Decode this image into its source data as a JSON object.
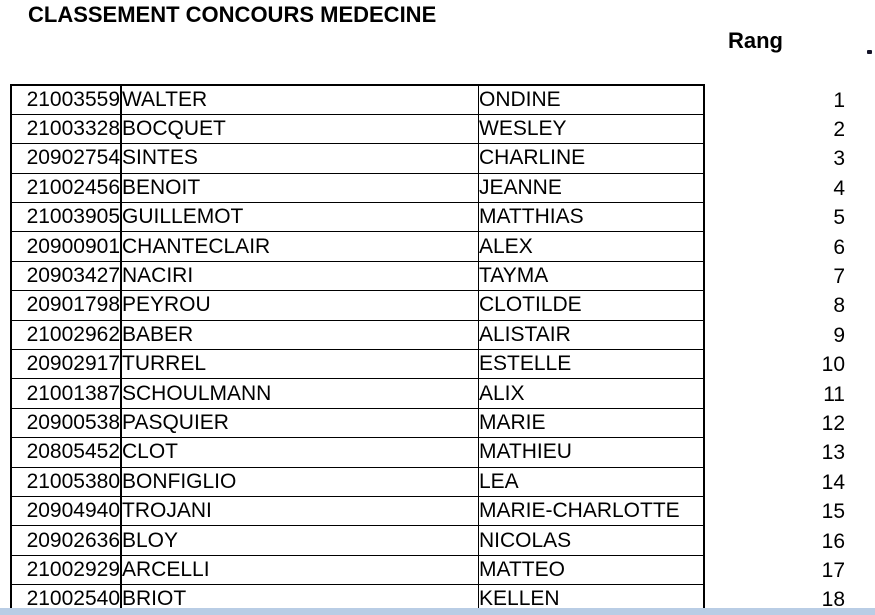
{
  "page": {
    "title": "CLASSEMENT CONCOURS MEDECINE",
    "rank_header": "Rang"
  },
  "table": {
    "columns": [
      "student-id",
      "last-name",
      "first-name"
    ],
    "rows": [
      {
        "id": "21003559",
        "last_name": "WALTER",
        "first_name": "ONDINE",
        "rank": "1"
      },
      {
        "id": "21003328",
        "last_name": "BOCQUET",
        "first_name": "WESLEY",
        "rank": "2"
      },
      {
        "id": "20902754",
        "last_name": "SINTES",
        "first_name": "CHARLINE",
        "rank": "3"
      },
      {
        "id": "21002456",
        "last_name": "BENOIT",
        "first_name": "JEANNE",
        "rank": "4"
      },
      {
        "id": "21003905",
        "last_name": "GUILLEMOT",
        "first_name": "MATTHIAS",
        "rank": "5"
      },
      {
        "id": "20900901",
        "last_name": "CHANTECLAIR",
        "first_name": "ALEX",
        "rank": "6"
      },
      {
        "id": "20903427",
        "last_name": "NACIRI",
        "first_name": "TAYMA",
        "rank": "7"
      },
      {
        "id": "20901798",
        "last_name": "PEYROU",
        "first_name": "CLOTILDE",
        "rank": "8"
      },
      {
        "id": "21002962",
        "last_name": "BABER",
        "first_name": "ALISTAIR",
        "rank": "9"
      },
      {
        "id": "20902917",
        "last_name": "TURREL",
        "first_name": "ESTELLE",
        "rank": "10"
      },
      {
        "id": "21001387",
        "last_name": "SCHOULMANN",
        "first_name": "ALIX",
        "rank": "11"
      },
      {
        "id": "20900538",
        "last_name": "PASQUIER",
        "first_name": "MARIE",
        "rank": "12"
      },
      {
        "id": "20805452",
        "last_name": "CLOT",
        "first_name": "MATHIEU",
        "rank": "13"
      },
      {
        "id": "21005380",
        "last_name": "BONFIGLIO",
        "first_name": "LEA",
        "rank": "14"
      },
      {
        "id": "20904940",
        "last_name": "TROJANI",
        "first_name": "MARIE-CHARLOTTE",
        "rank": "15"
      },
      {
        "id": "20902636",
        "last_name": "BLOY",
        "first_name": "NICOLAS",
        "rank": "16"
      },
      {
        "id": "21002929",
        "last_name": "ARCELLI",
        "first_name": "MATTEO",
        "rank": "17"
      },
      {
        "id": "21002540",
        "last_name": "BRIOT",
        "first_name": "KELLEN",
        "rank": "18"
      }
    ]
  },
  "colors": {
    "text": "#000000",
    "table_border": "#000000",
    "background": "#ffffff",
    "bottom_bar": "#b9cde5",
    "edge_mark": "#141428"
  }
}
